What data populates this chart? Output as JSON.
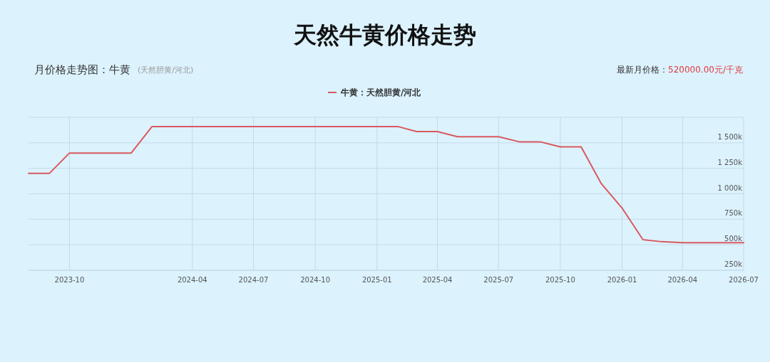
{
  "chart_data": {
    "type": "line",
    "title": "天然牛黄价格走势",
    "subtitle": "月价格走势图：牛黄",
    "annotations": [
      "(天然胆黄/河北)",
      "最新月价格：",
      "520000.00元/千克"
    ],
    "x": [
      "2023-08",
      "2023-09",
      "2023-10",
      "2023-11",
      "2023-12",
      "2024-01",
      "2024-02",
      "2024-03",
      "2024-04",
      "2024-05",
      "2024-06",
      "2024-07",
      "2024-08",
      "2024-09",
      "2024-10",
      "2024-11",
      "2024-12",
      "2025-01",
      "2025-02",
      "2025-03",
      "2025-04",
      "2025-05",
      "2025-06",
      "2025-07",
      "2025-08",
      "2025-09",
      "2025-10",
      "2025-11",
      "2025-12",
      "2026-01",
      "2026-02",
      "2026-03",
      "2026-04",
      "2026-05",
      "2026-06",
      "2026-07"
    ],
    "series": [
      {
        "name": "牛黄：天然胆黄/河北",
        "color": "#d9595f",
        "values": [
          1200000,
          1200000,
          1400000,
          1400000,
          1400000,
          1400000,
          1660000,
          1660000,
          1660000,
          1660000,
          1660000,
          1660000,
          1660000,
          1660000,
          1660000,
          1660000,
          1660000,
          1660000,
          1660000,
          1610000,
          1610000,
          1560000,
          1560000,
          1560000,
          1510000,
          1510000,
          1460000,
          1460000,
          1100000,
          860000,
          550000,
          530000,
          520000,
          520000,
          520000,
          520000
        ]
      }
    ],
    "xlim": [
      "2023-08",
      "2026-07"
    ],
    "xticks": [
      "2023-10",
      "2024-04",
      "2024-07",
      "2024-10",
      "2025-01",
      "2025-04",
      "2025-07",
      "2025-10",
      "2026-01",
      "2026-04",
      "2026-07"
    ],
    "ylim": [
      250000,
      1750000
    ],
    "yticks": [
      {
        "value": 250000,
        "label": "250k"
      },
      {
        "value": 500000,
        "label": "500k"
      },
      {
        "value": 750000,
        "label": "750k"
      },
      {
        "value": 1000000,
        "label": "1 000k"
      },
      {
        "value": 1250000,
        "label": "1 250k"
      },
      {
        "value": 1500000,
        "label": "1 500k"
      },
      {
        "value": 1750000,
        "label": null
      }
    ],
    "grid": true,
    "legend": "top",
    "marker": "none",
    "line_style": "solid"
  }
}
